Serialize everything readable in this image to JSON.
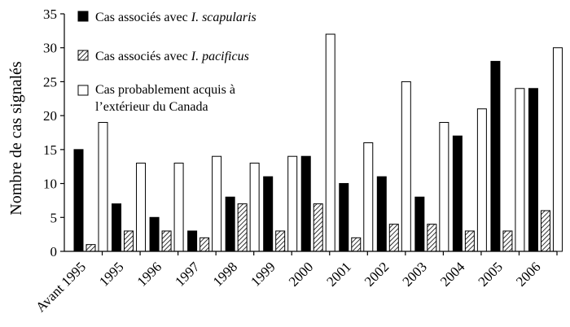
{
  "chart_data": {
    "type": "bar",
    "categories": [
      "Avant 1995",
      "1995",
      "1996",
      "1997",
      "1998",
      "1999",
      "2000",
      "2001",
      "2002",
      "2003",
      "2004",
      "2005",
      "2006"
    ],
    "series": [
      {
        "name": "Cas associés avec I. scapularis",
        "name_prefix": "Cas associés avec ",
        "name_species": "I. scapularis",
        "color": "#000000",
        "pattern": "solid",
        "values": [
          15,
          7,
          5,
          3,
          8,
          11,
          14,
          10,
          11,
          8,
          17,
          28,
          24
        ]
      },
      {
        "name": "Cas associés avec I. pacificus",
        "name_prefix": "Cas associés avec ",
        "name_species": "I. pacificus",
        "color": "#ffffff",
        "pattern": "hatched",
        "values": [
          1,
          3,
          3,
          2,
          7,
          3,
          7,
          2,
          4,
          4,
          3,
          3,
          6
        ]
      },
      {
        "name": "Cas probablement acquis à l’extérieur du Canada",
        "name_line1": "Cas probablement acquis à",
        "name_line2": "l’extérieur du Canada",
        "color": "#ffffff",
        "pattern": "empty",
        "values": [
          19,
          13,
          13,
          14,
          13,
          14,
          32,
          16,
          25,
          19,
          21,
          24,
          30
        ]
      }
    ],
    "xlabel": "",
    "ylabel": "Nombre de cas signalés",
    "ylim": [
      0,
      35
    ],
    "yticks": [
      0,
      5,
      10,
      15,
      20,
      25,
      30,
      35
    ],
    "grid": false,
    "legend_position": "top-left"
  }
}
